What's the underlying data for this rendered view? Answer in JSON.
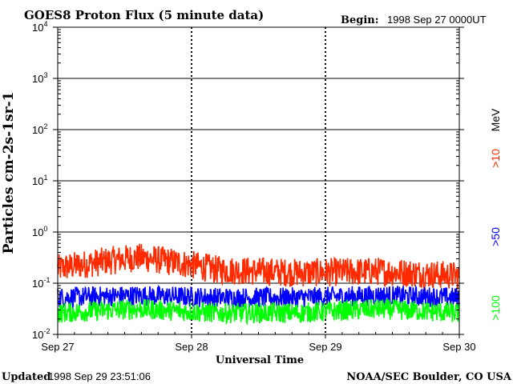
{
  "chart_data": {
    "type": "line",
    "title": "GOES8 Proton Flux (5 minute data)",
    "begin_label": "Begin:",
    "begin_value": "1998 Sep 27 0000UT",
    "xlabel": "Universal Time",
    "ylabel": "Particles cm-2s-1sr-1",
    "y_scale": "log",
    "ylim": [
      0.01,
      10000
    ],
    "y_ticks": [
      {
        "base": "10",
        "exp": "4"
      },
      {
        "base": "10",
        "exp": "3"
      },
      {
        "base": "10",
        "exp": "2"
      },
      {
        "base": "10",
        "exp": "1"
      },
      {
        "base": "10",
        "exp": "0"
      },
      {
        "base": "10",
        "exp": "-1"
      },
      {
        "base": "10",
        "exp": "-2"
      }
    ],
    "x_ticks": [
      "Sep 27",
      "Sep 28",
      "Sep 29",
      "Sep 30"
    ],
    "xlim": [
      "1998-09-27T00:00",
      "1998-09-30T00:00"
    ],
    "grid": true,
    "legend_unit": "MeV",
    "series": [
      {
        "name": ">10",
        "color": "#ff2a00",
        "baseline": [
          0.18,
          0.3,
          0.17,
          0.15,
          0.16,
          0.13
        ],
        "variation": 0.35
      },
      {
        "name": ">50",
        "color": "#0000ff",
        "baseline": [
          0.05,
          0.055,
          0.05,
          0.05,
          0.055,
          0.05
        ],
        "variation": 0.25
      },
      {
        "name": ">100",
        "color": "#00ff00",
        "baseline": [
          0.025,
          0.03,
          0.025,
          0.025,
          0.03,
          0.025
        ],
        "variation": 0.25
      }
    ]
  },
  "footer": {
    "updated_label": "Updated",
    "updated_value": "1998 Sep 29 23:51:06",
    "credit": "NOAA/SEC Boulder, CO USA"
  }
}
